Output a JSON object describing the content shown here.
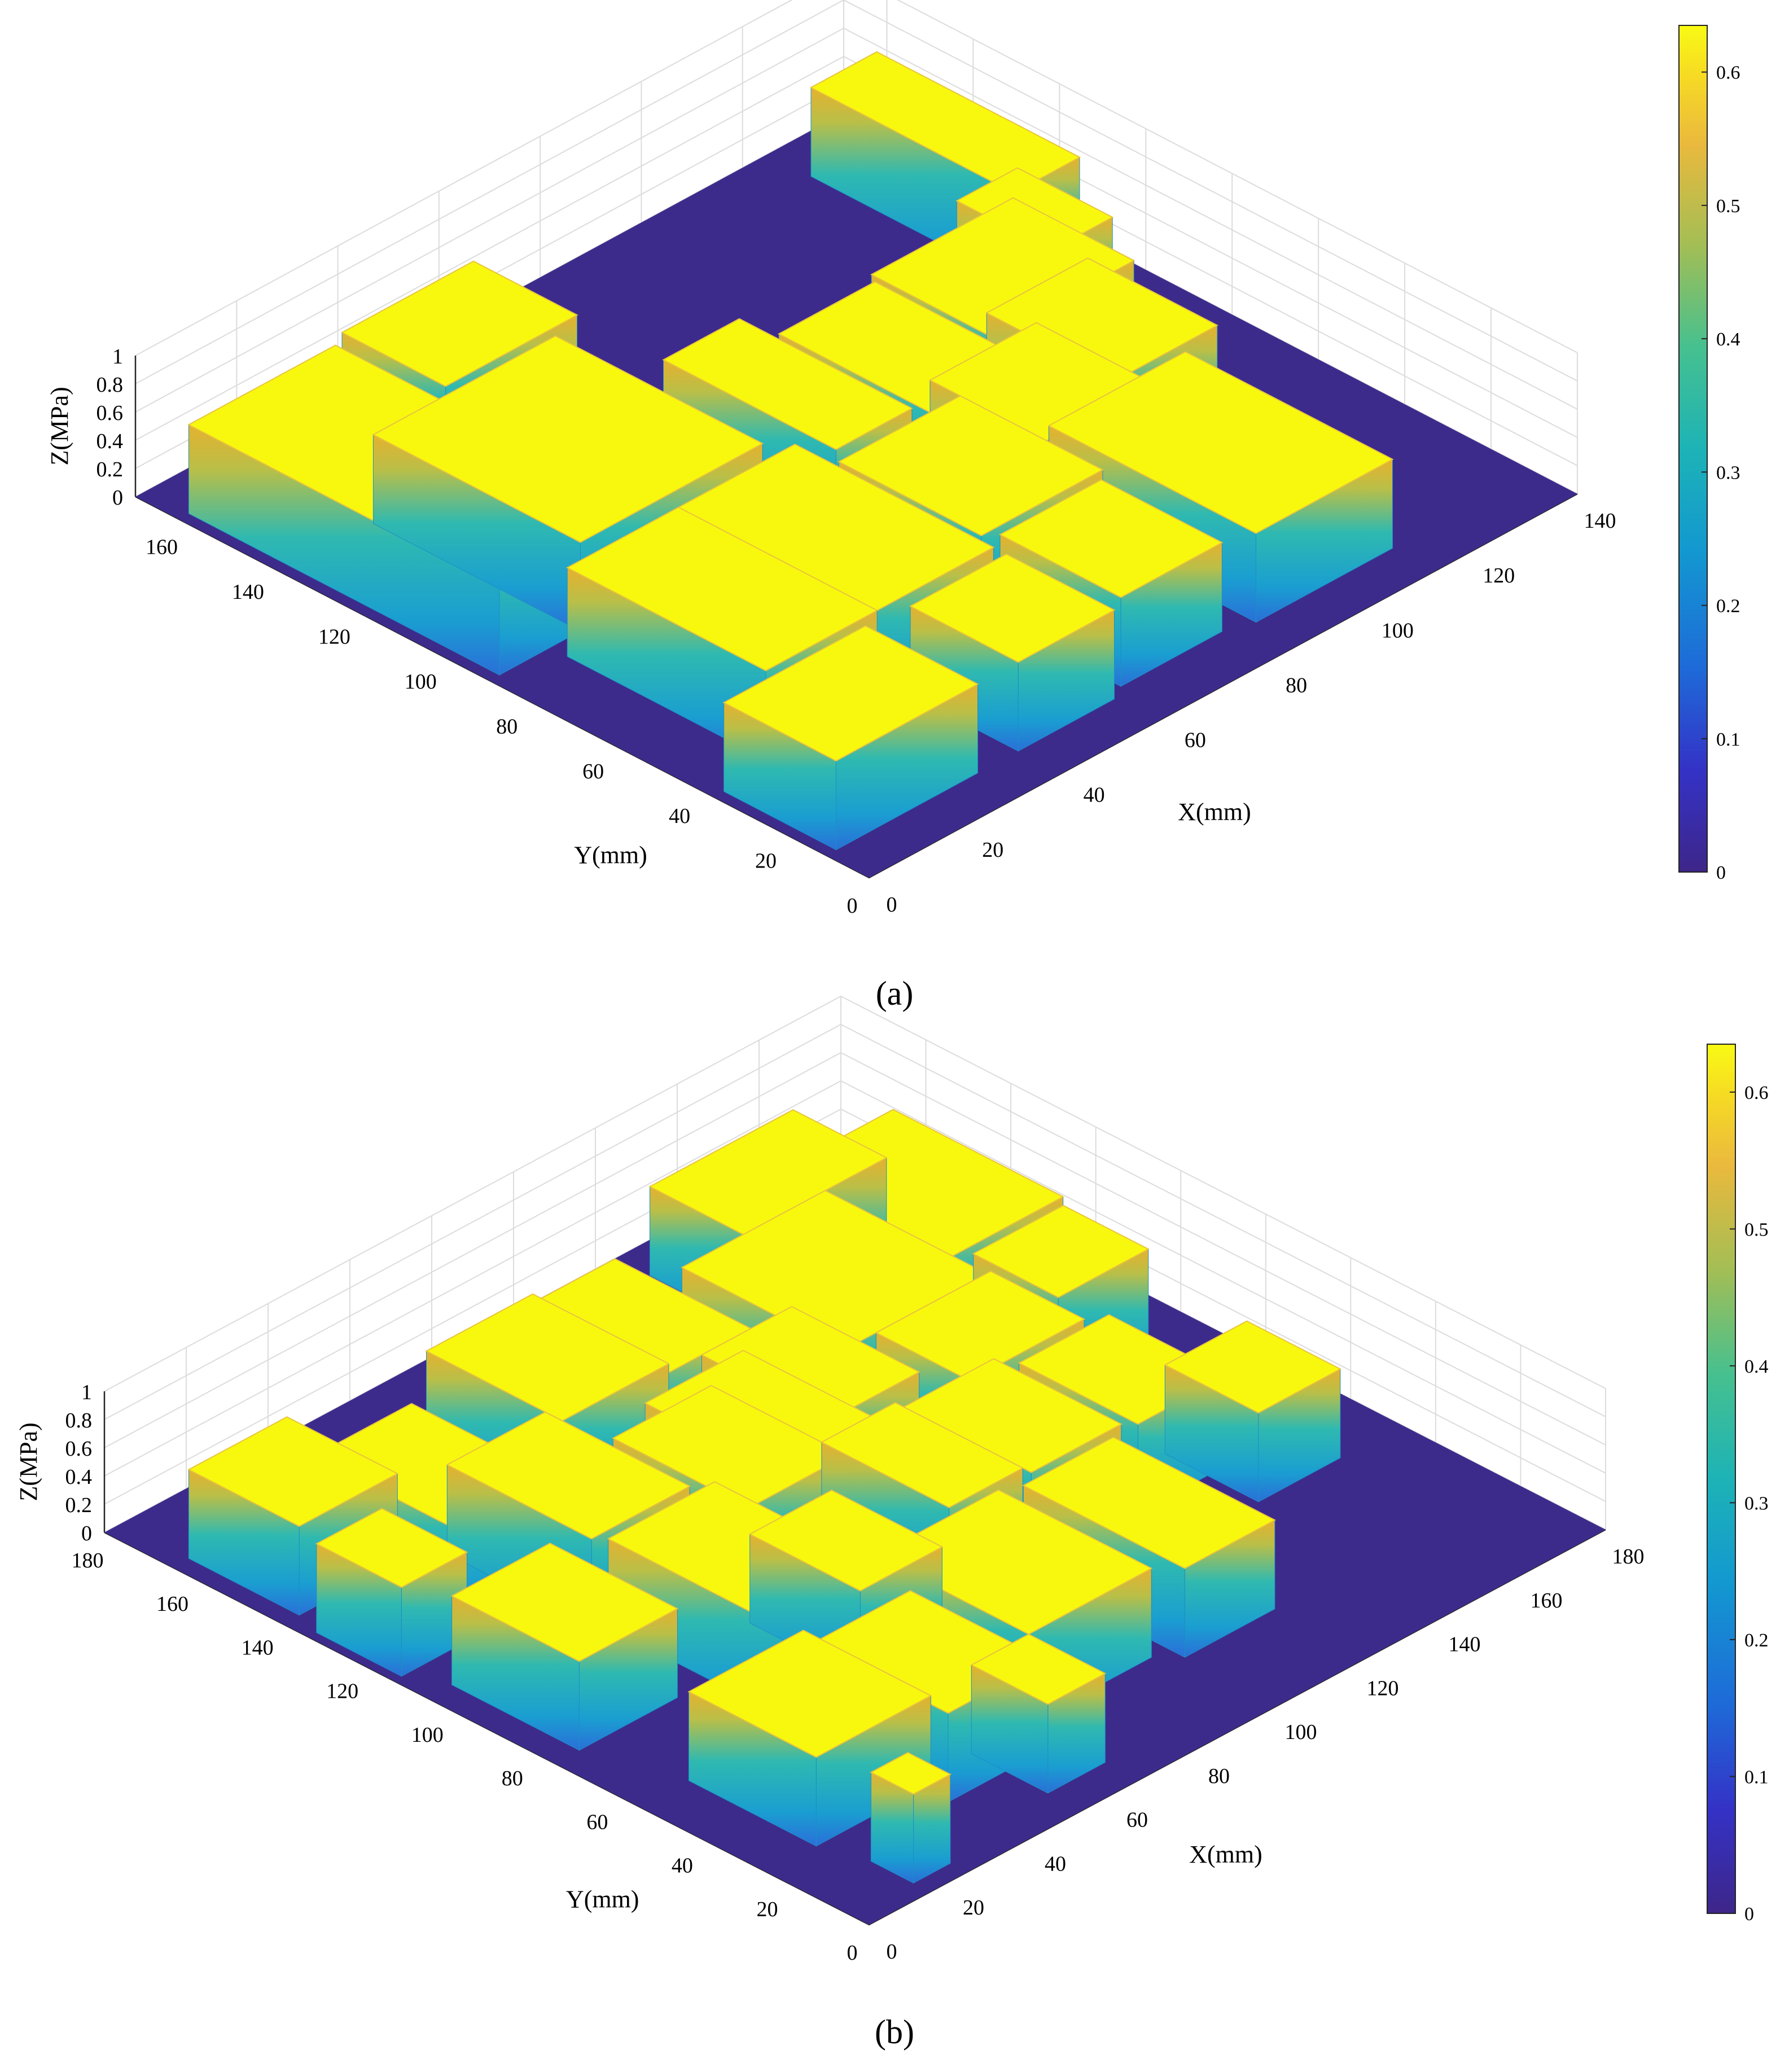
{
  "chart_data": [
    {
      "type": "surface3d",
      "panel_label": "(a)",
      "xlabel": "X(mm)",
      "ylabel": "Y(mm)",
      "zlabel": "Z(MPa)",
      "xlim": [
        0,
        140
      ],
      "ylim": [
        0,
        170
      ],
      "zlim": [
        0,
        1
      ],
      "x_ticks": [
        "0",
        "20",
        "40",
        "60",
        "80",
        "100",
        "120",
        "140"
      ],
      "y_ticks": [
        "0",
        "20",
        "40",
        "60",
        "80",
        "100",
        "120",
        "140",
        "160"
      ],
      "z_ticks": [
        "0",
        "0.2",
        "0.4",
        "0.6",
        "0.8",
        "1"
      ],
      "colorbar": {
        "min": 0,
        "max": 0.635,
        "ticks": [
          "0",
          "0.1",
          "0.2",
          "0.3",
          "0.4",
          "0.5",
          "0.6"
        ]
      },
      "contact_value": 0.63,
      "floor_value": 0,
      "grid": true,
      "blocks": [
        {
          "x": [
            125,
            138
          ],
          "y": [
            113,
            160
          ]
        },
        {
          "x": [
            118,
            130
          ],
          "y": [
            96,
            118
          ]
        },
        {
          "x": [
            96,
            124
          ],
          "y": [
            84,
            112
          ]
        },
        {
          "x": [
            100,
            120
          ],
          "y": [
            60,
            90
          ]
        },
        {
          "x": [
            76,
            95
          ],
          "y": [
            75,
            110
          ]
        },
        {
          "x": [
            82,
            103
          ],
          "y": [
            55,
            82
          ]
        },
        {
          "x": [
            85,
            112
          ],
          "y": [
            10,
            58
          ]
        },
        {
          "x": [
            60,
            80
          ],
          "y": [
            12,
            40
          ]
        },
        {
          "x": [
            58,
            82
          ],
          "y": [
            42,
            75
          ]
        },
        {
          "x": [
            60,
            75
          ],
          "y": [
            78,
            118
          ]
        },
        {
          "x": [
            38,
            57
          ],
          "y": [
            10,
            35
          ]
        },
        {
          "x": [
            32,
            57
          ],
          "y": [
            38,
            84
          ]
        },
        {
          "x": [
            18,
            54
          ],
          "y": [
            88,
            136
          ]
        },
        {
          "x": [
            12,
            34
          ],
          "y": [
            38,
            84
          ]
        },
        {
          "x": [
            2,
            30
          ],
          "y": [
            10,
            36
          ]
        },
        {
          "x": [
            34,
            60
          ],
          "y": [
            138,
            162
          ]
        },
        {
          "x": [
            2,
            31
          ],
          "y": [
            88,
            160
          ]
        }
      ]
    },
    {
      "type": "surface3d",
      "panel_label": "(b)",
      "xlabel": "X(mm)",
      "ylabel": "Y(mm)",
      "zlabel": "Z(MPa)",
      "xlim": [
        0,
        180
      ],
      "ylim": [
        0,
        180
      ],
      "zlim": [
        0,
        1
      ],
      "x_ticks": [
        "0",
        "20",
        "40",
        "60",
        "80",
        "100",
        "120",
        "140",
        "160",
        "180"
      ],
      "y_ticks": [
        "0",
        "20",
        "40",
        "60",
        "80",
        "100",
        "120",
        "140",
        "160",
        "180"
      ],
      "z_ticks": [
        "0",
        "0.2",
        "0.4",
        "0.6",
        "0.8",
        "1"
      ],
      "colorbar": {
        "min": 0,
        "max": 0.635,
        "ticks": [
          "0",
          "0.1",
          "0.2",
          "0.3",
          "0.4",
          "0.5",
          "0.6"
        ]
      },
      "contact_value": 0.63,
      "floor_value": 0,
      "grid": true,
      "blocks": [
        {
          "x": [
            142,
            172
          ],
          "y": [
            120,
            160
          ]
        },
        {
          "x": [
            125,
            160
          ],
          "y": [
            150,
            172
          ]
        },
        {
          "x": [
            148,
            170
          ],
          "y": [
            98,
            118
          ]
        },
        {
          "x": [
            110,
            145
          ],
          "y": [
            112,
            150
          ]
        },
        {
          "x": [
            118,
            146
          ],
          "y": [
            90,
            112
          ]
        },
        {
          "x": [
            128,
            150
          ],
          "y": [
            60,
            88
          ]
        },
        {
          "x": [
            145,
            165
          ],
          "y": [
            48,
            70
          ]
        },
        {
          "x": [
            104,
            126
          ],
          "y": [
            62,
            92
          ]
        },
        {
          "x": [
            92,
            114
          ],
          "y": [
            98,
            128
          ]
        },
        {
          "x": [
            80,
            104
          ],
          "y": [
            128,
            160
          ]
        },
        {
          "x": [
            60,
            86
          ],
          "y": [
            130,
            162
          ]
        },
        {
          "x": [
            74,
            98
          ],
          "y": [
            92,
            124
          ]
        },
        {
          "x": [
            62,
            86
          ],
          "y": [
            88,
            120
          ]
        },
        {
          "x": [
            86,
            104
          ],
          "y": [
            64,
            94
          ]
        },
        {
          "x": [
            100,
            122
          ],
          "y": [
            22,
            60
          ]
        },
        {
          "x": [
            66,
            96
          ],
          "y": [
            26,
            62
          ]
        },
        {
          "x": [
            56,
            76
          ],
          "y": [
            56,
            82
          ]
        },
        {
          "x": [
            38,
            64
          ],
          "y": [
            56,
            98
          ]
        },
        {
          "x": [
            36,
            60
          ],
          "y": [
            100,
            134
          ]
        },
        {
          "x": [
            22,
            46
          ],
          "y": [
            120,
            152
          ]
        },
        {
          "x": [
            4,
            28
          ],
          "y": [
            138,
            164
          ]
        },
        {
          "x": [
            38,
            62
          ],
          "y": [
            18,
            50
          ]
        },
        {
          "x": [
            12,
            40
          ],
          "y": [
            24,
            54
          ]
        },
        {
          "x": [
            52,
            66
          ],
          "y": [
            8,
            26
          ]
        },
        {
          "x": [
            6,
            30
          ],
          "y": [
            74,
            104
          ]
        },
        {
          "x": [
            2,
            18
          ],
          "y": [
            112,
            132
          ]
        },
        {
          "x": [
            15,
            24
          ],
          "y": [
            4,
            14
          ]
        }
      ]
    }
  ]
}
